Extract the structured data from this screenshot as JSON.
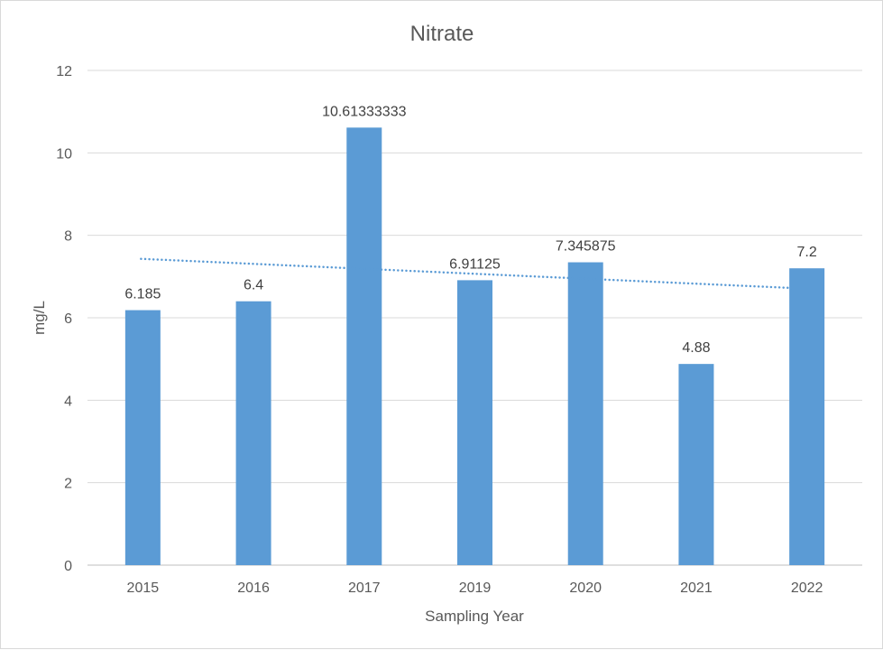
{
  "chart_data": {
    "type": "bar",
    "title": "Nitrate",
    "xlabel": "Sampling Year",
    "ylabel": "mg/L",
    "categories": [
      "2015",
      "2016",
      "2017",
      "2019",
      "2020",
      "2021",
      "2022"
    ],
    "values": [
      6.185,
      6.4,
      10.61333333,
      6.91125,
      7.345875,
      4.88,
      7.2
    ],
    "data_labels": [
      "6.185",
      "6.4",
      "10.61333333",
      "6.91125",
      "7.345875",
      "4.88",
      "7.2"
    ],
    "ylim": [
      0,
      12
    ],
    "yticks": [
      0,
      2,
      4,
      6,
      8,
      10,
      12
    ],
    "grid": true,
    "legend": "none",
    "bar_color": "#5b9bd5",
    "trendline": {
      "type": "linear",
      "style": "dotted",
      "color": "#5b9bd5",
      "start_value": 7.43,
      "end_value": 6.72
    }
  }
}
